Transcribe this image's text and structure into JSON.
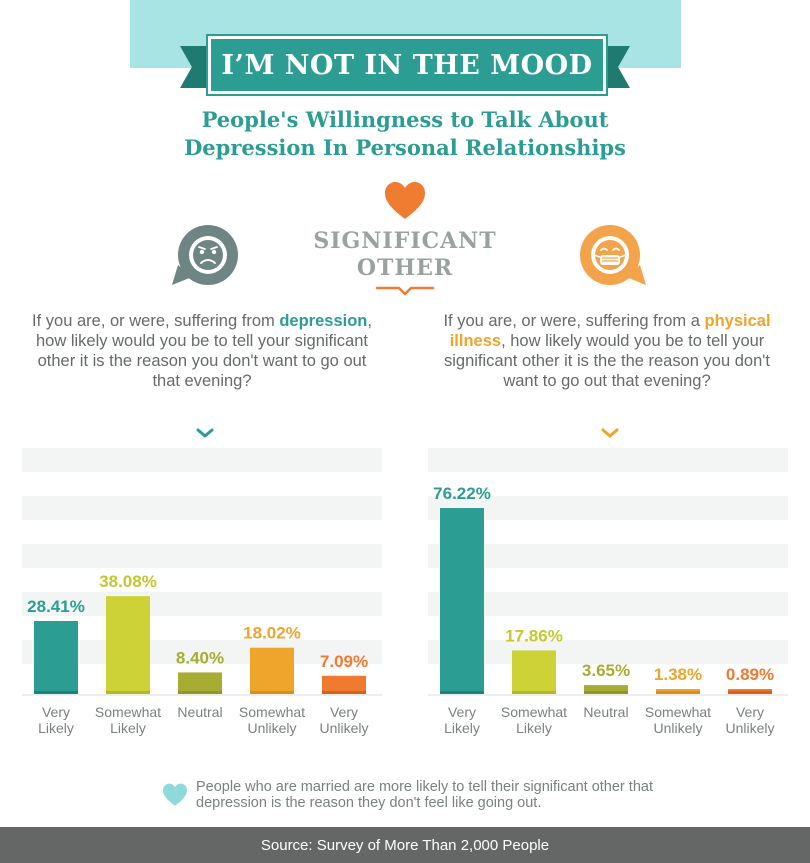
{
  "header": {
    "title": "I’M NOT IN THE MOOD",
    "subtitle_line1": "People's Willingness to Talk About",
    "subtitle_line2": "Depression In Personal Relationships"
  },
  "center": {
    "label_line1": "SIGNIFICANT",
    "label_line2": "OTHER",
    "icon": "heart-icon"
  },
  "left_panel": {
    "icon": "sad-face-icon",
    "q_before": "If you are, or were, suffering from ",
    "q_keyword": "depression",
    "q_after": ", how likely would you be to tell your significant other it is the reason you don't want to go out that evening?"
  },
  "right_panel": {
    "icon": "mask-face-icon",
    "q_before": "If you are, or were, suffering from a ",
    "q_keyword": "physical illness",
    "q_after": ", how likely would you be to tell your significant other it is the the reason you don't want to go out that evening?"
  },
  "note": {
    "text": "People who are married are more likely to tell their significant other that depression is the reason they don't feel like going out."
  },
  "footer": {
    "source": "Source: Survey of More Than 2,000 People"
  },
  "colors": {
    "very_likely": "#2b9d92",
    "somewhat_likely": "#cdd236",
    "neutral": "#a7ad32",
    "somewhat_unlikely": "#efa42c",
    "very_unlikely": "#ef7a30",
    "accent_orange": "#f07c31",
    "grid_band": "#f3f5f5"
  },
  "chart_data": [
    {
      "type": "bar",
      "categories": [
        [
          "Very",
          "Likely"
        ],
        [
          "Somewhat",
          "Likely"
        ],
        [
          "Neutral"
        ],
        [
          "Somewhat",
          "Unlikely"
        ],
        [
          "Very",
          "Unlikely"
        ]
      ],
      "values": [
        28.41,
        38.08,
        8.4,
        18.02,
        7.09
      ],
      "labels": [
        "28.41%",
        "38.08%",
        "8.40%",
        "18.02%",
        "7.09%"
      ],
      "ylim": [
        0,
        100
      ]
    },
    {
      "type": "bar",
      "categories": [
        [
          "Very",
          "Likely"
        ],
        [
          "Somewhat",
          "Likely"
        ],
        [
          "Neutral"
        ],
        [
          "Somewhat",
          "Unlikely"
        ],
        [
          "Very",
          "Unlikely"
        ]
      ],
      "values": [
        76.22,
        17.86,
        3.65,
        1.38,
        0.89
      ],
      "labels": [
        "76.22%",
        "17.86%",
        "3.65%",
        "1.38%",
        "0.89%"
      ],
      "ylim": [
        0,
        80
      ]
    }
  ]
}
